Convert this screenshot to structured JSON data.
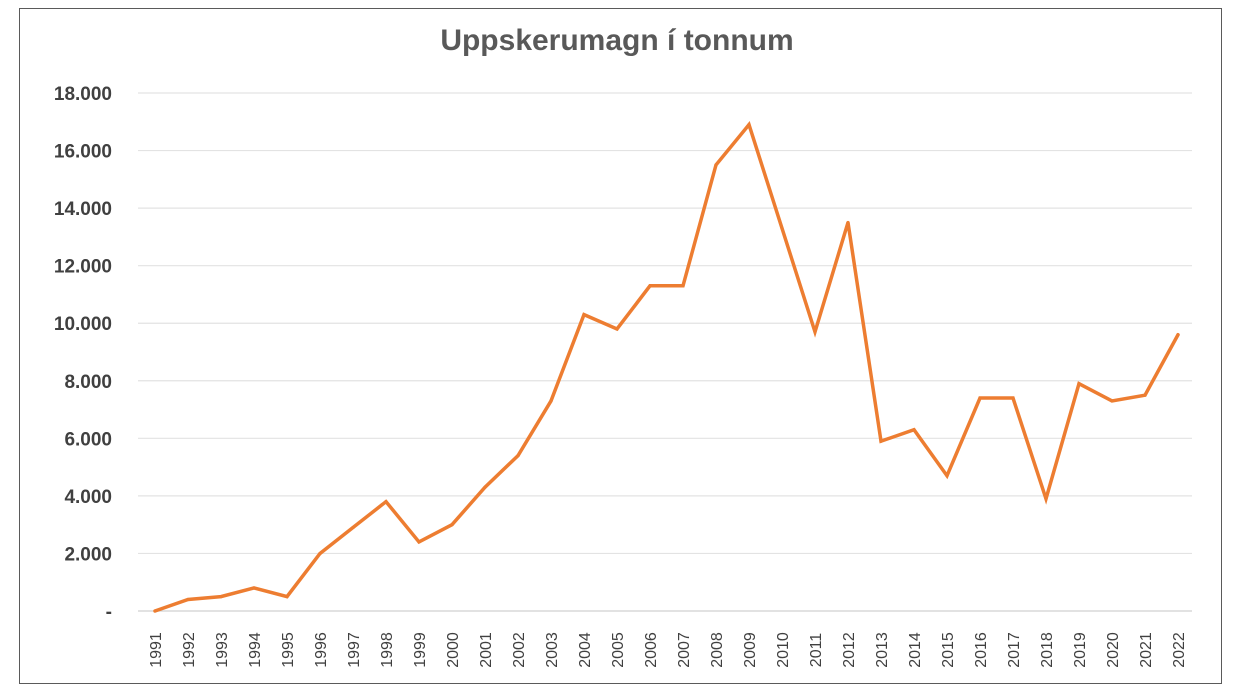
{
  "chart_data": {
    "type": "line",
    "title": "Uppskerumagn í tonnum",
    "xlabel": "",
    "ylabel": "",
    "x": [
      "1991",
      "1992",
      "1993",
      "1994",
      "1995",
      "1996",
      "1997",
      "1998",
      "1999",
      "2000",
      "2001",
      "2002",
      "2003",
      "2004",
      "2005",
      "2006",
      "2007",
      "2008",
      "2009",
      "2010",
      "2011",
      "2012",
      "2013",
      "2014",
      "2015",
      "2016",
      "2017",
      "2018",
      "2019",
      "2020",
      "2021",
      "2022"
    ],
    "series": [
      {
        "name": "",
        "color": "#ED7D31",
        "values": [
          0,
          400,
          500,
          800,
          500,
          2000,
          2900,
          3800,
          2400,
          3000,
          4300,
          5400,
          7300,
          10300,
          9800,
          11300,
          11300,
          15500,
          16900,
          13300,
          9700,
          13500,
          5900,
          6300,
          4700,
          7400,
          7400,
          3900,
          7900,
          7300,
          7500,
          9600
        ]
      }
    ],
    "ylim": [
      0,
      18000
    ],
    "yticks": [
      0,
      2000,
      4000,
      6000,
      8000,
      10000,
      12000,
      14000,
      16000,
      18000
    ],
    "ytick_labels": [
      "-",
      "2.000",
      "4.000",
      "6.000",
      "8.000",
      "10.000",
      "12.000",
      "14.000",
      "16.000",
      "18.000"
    ],
    "grid": true,
    "legend": "none"
  }
}
